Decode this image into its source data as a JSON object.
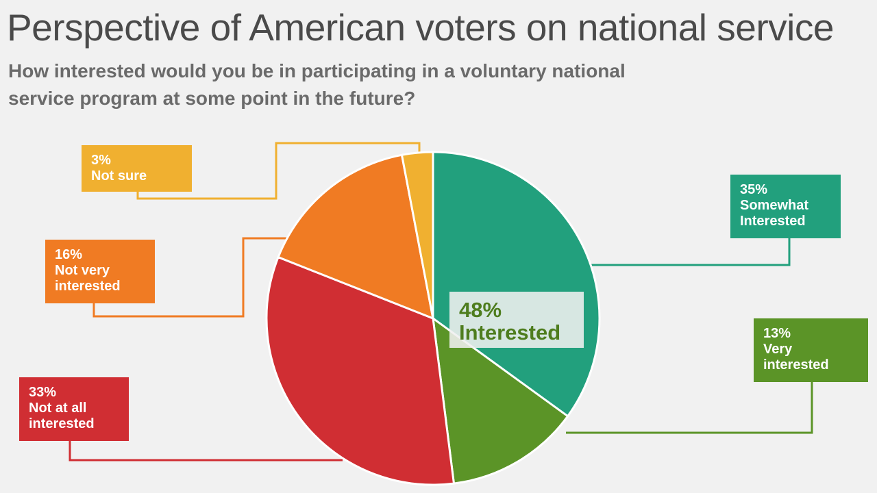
{
  "header": {
    "title": "Perspective of American voters on national service",
    "subtitle": "How interested would you be in participating in a voluntary national service program at some point in the future?"
  },
  "chart_data": {
    "type": "pie",
    "title": "Perspective of American voters on national service",
    "subtitle": "How interested would you be in participating in a voluntary national service program at some point in the future?",
    "slices": [
      {
        "key": "somewhat",
        "value": 35,
        "pct_label": "35%",
        "lines": [
          "Somewhat",
          "Interested"
        ],
        "color": "#22a07d"
      },
      {
        "key": "very",
        "value": 13,
        "pct_label": "13%",
        "lines": [
          "Very",
          "interested"
        ],
        "color": "#5b9427"
      },
      {
        "key": "notatall",
        "value": 33,
        "pct_label": "33%",
        "lines": [
          "Not at all",
          "interested"
        ],
        "color": "#d02e33"
      },
      {
        "key": "notvery",
        "value": 16,
        "pct_label": "16%",
        "lines": [
          "Not very",
          "interested"
        ],
        "color": "#f07b23"
      },
      {
        "key": "notsure",
        "value": 3,
        "pct_label": "3%",
        "lines": [
          "Not sure"
        ],
        "color": "#f0b030"
      }
    ],
    "annotation": {
      "pct": "48%",
      "text": "Interested",
      "color": "#4e7d1e"
    }
  }
}
